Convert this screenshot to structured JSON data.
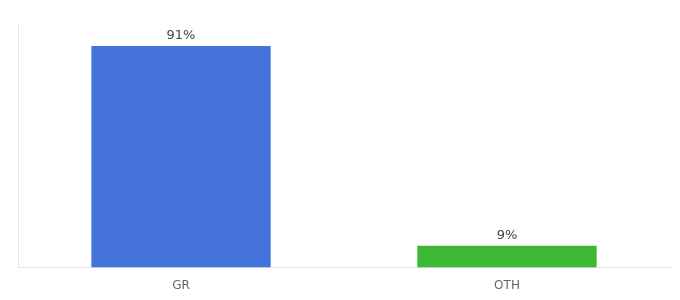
{
  "chart_data": {
    "type": "bar",
    "categories": [
      "GR",
      "OTH"
    ],
    "values": [
      91,
      9
    ],
    "value_labels": [
      "91%",
      "9%"
    ],
    "colors": [
      "#4472db",
      "#3cb832"
    ],
    "ylim": [
      0,
      100
    ],
    "grid": false,
    "data_labels": true,
    "tick_labels": "x"
  }
}
